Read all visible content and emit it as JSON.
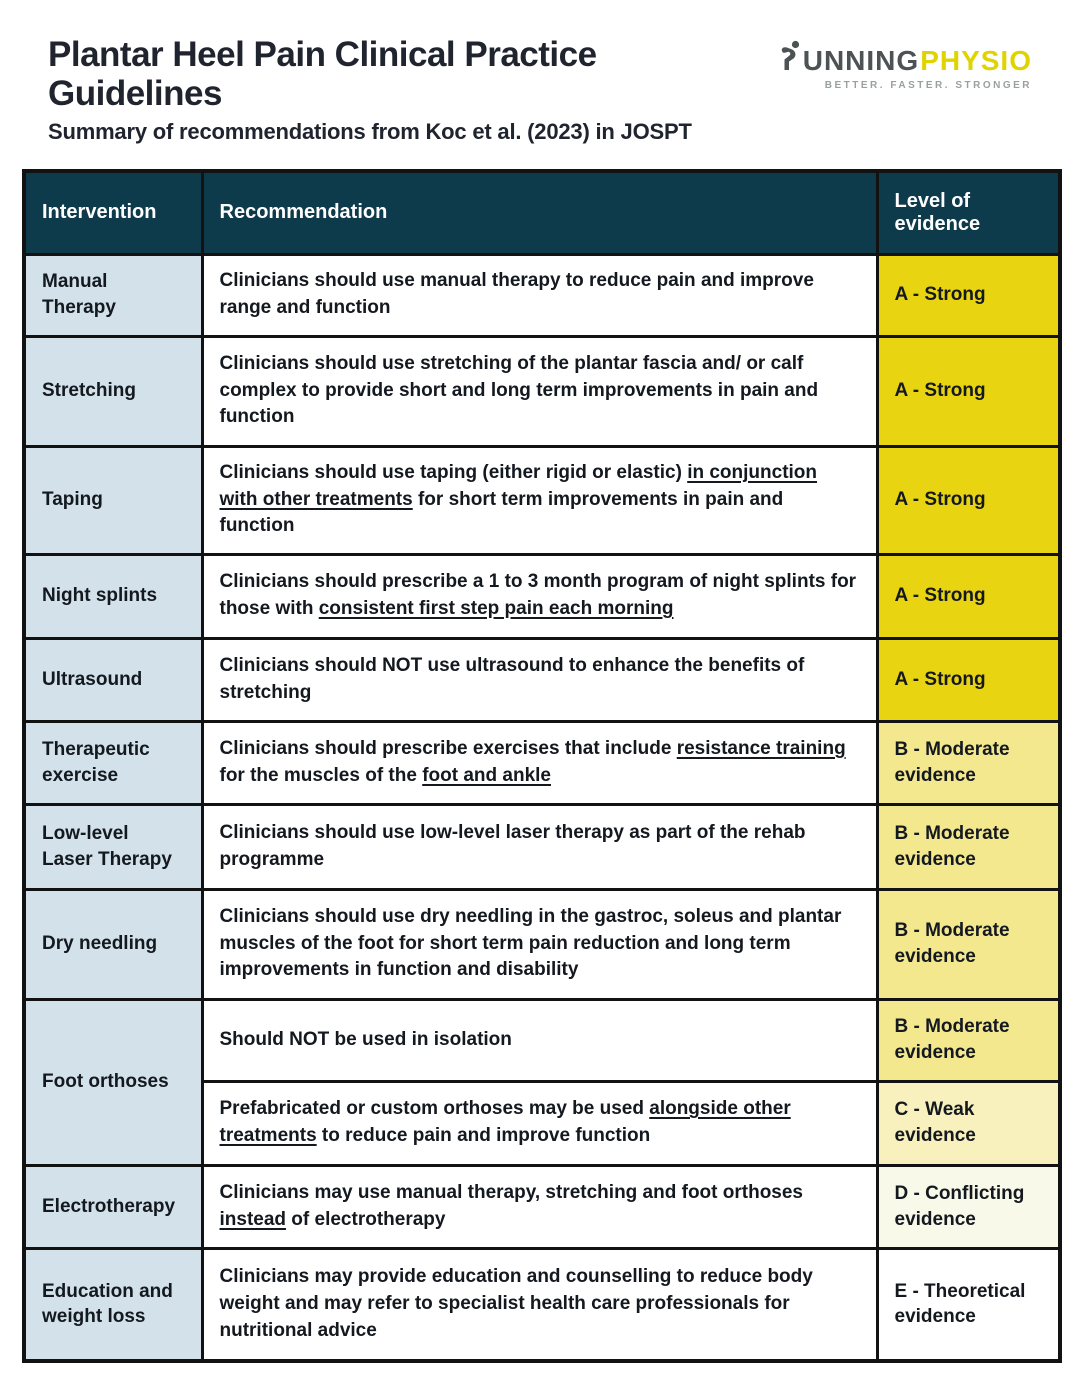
{
  "header": {
    "title": "Plantar Heel Pain Clinical Practice Guidelines",
    "subtitle": "Summary of recommendations from Koc et al. (2023) in JOSPT",
    "logo": {
      "running": "UNNING",
      "physio": "PHYSIO",
      "tagline": "BETTER. FASTER. STRONGER"
    }
  },
  "colors": {
    "header_bg": "#0d3b4c",
    "intervention_bg": "#d3e2ea",
    "brand_gray": "#4d5254",
    "brand_yellow": "#e0d400"
  },
  "evidence_colors": {
    "A": "#e9d411",
    "B": "#f4e88f",
    "C": "#f8f0bd",
    "D": "#f9f9ea",
    "E": "#ffffff"
  },
  "table": {
    "columns": [
      "Intervention",
      "Recommendation",
      "Level of evidence"
    ],
    "rows": [
      {
        "intervention": "Manual Therapy",
        "recommendation": [
          {
            "t": "Clinicians should use manual therapy to reduce pain and improve range and function"
          }
        ],
        "evidence": "A - Strong",
        "grade": "A"
      },
      {
        "intervention": "Stretching",
        "recommendation": [
          {
            "t": "Clinicians should use stretching of the plantar fascia and/ or calf complex to provide short and long term improvements in pain and function"
          }
        ],
        "evidence": "A - Strong",
        "grade": "A"
      },
      {
        "intervention": "Taping",
        "recommendation": [
          {
            "t": "Clinicians should use taping (either rigid or elastic) "
          },
          {
            "t": "in conjunction with other treatments",
            "u": true
          },
          {
            "t": " for short term improvements in pain and function"
          }
        ],
        "evidence": "A - Strong",
        "grade": "A"
      },
      {
        "intervention": "Night splints",
        "recommendation": [
          {
            "t": "Clinicians should prescribe a 1 to 3 month program of night splints for those with "
          },
          {
            "t": "consistent first step pain each morning",
            "u": true
          }
        ],
        "evidence": "A - Strong",
        "grade": "A"
      },
      {
        "intervention": "Ultrasound",
        "recommendation": [
          {
            "t": "Clinicians should NOT use ultrasound to enhance the benefits of stretching"
          }
        ],
        "evidence": "A - Strong",
        "grade": "A"
      },
      {
        "intervention": "Therapeutic exercise",
        "recommendation": [
          {
            "t": "Clinicians should prescribe exercises that include "
          },
          {
            "t": "resistance training",
            "u": true
          },
          {
            "t": " for the muscles of the "
          },
          {
            "t": "foot and ankle",
            "u": true
          }
        ],
        "evidence": "B - Moderate evidence",
        "grade": "B"
      },
      {
        "intervention": "Low-level Laser Therapy",
        "recommendation": [
          {
            "t": "Clinicians should use low-level laser therapy as part of the rehab programme"
          }
        ],
        "evidence": "B - Moderate evidence",
        "grade": "B"
      },
      {
        "intervention": "Dry needling",
        "recommendation": [
          {
            "t": "Clinicians should use dry needling in the gastroc, soleus and plantar muscles of the foot for short term pain reduction and long term improvements in function and disability"
          }
        ],
        "evidence": "B - Moderate evidence",
        "grade": "B"
      },
      {
        "intervention": "Foot orthoses",
        "rowspan": 2,
        "recommendation": [
          {
            "t": "Should NOT be used in isolation"
          }
        ],
        "evidence": "B - Moderate evidence",
        "grade": "B"
      },
      {
        "intervention": null,
        "recommendation": [
          {
            "t": "Prefabricated or custom orthoses may be used "
          },
          {
            "t": "alongside other treatments",
            "u": true
          },
          {
            "t": " to reduce pain and improve function"
          }
        ],
        "evidence": "C - Weak evidence",
        "grade": "C"
      },
      {
        "intervention": "Electrotherapy",
        "recommendation": [
          {
            "t": "Clinicians may use manual therapy, stretching and foot orthoses "
          },
          {
            "t": "instead",
            "u": true
          },
          {
            "t": " of electrotherapy"
          }
        ],
        "evidence": "D - Conflicting evidence",
        "grade": "D"
      },
      {
        "intervention": "Education and weight loss",
        "recommendation": [
          {
            "t": "Clinicians may provide education and counselling to reduce body weight and may refer to specialist health care professionals for nutritional advice"
          }
        ],
        "evidence": "E - Theoretical evidence",
        "grade": "E"
      }
    ]
  }
}
